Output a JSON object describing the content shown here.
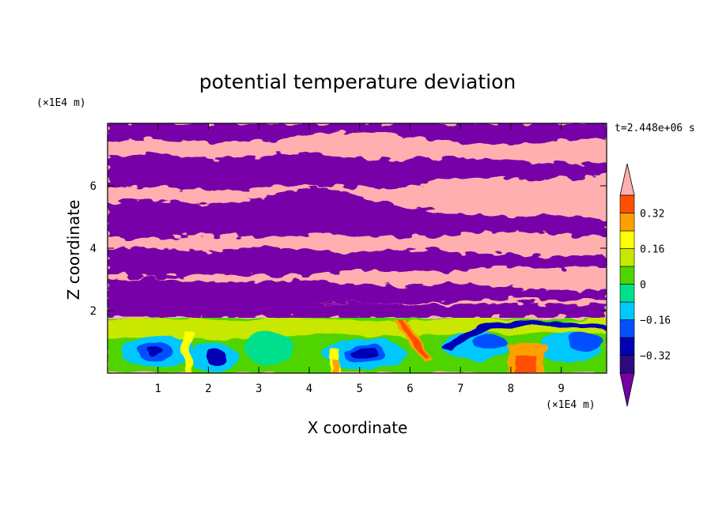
{
  "chart_data": {
    "type": "heatmap",
    "title": "potential temperature deviation",
    "xlabel": "X coordinate",
    "ylabel": "Z coordinate",
    "x_units": "(×1E4 m)",
    "y_units": "(×1E4 m)",
    "time_label": "t=2.448e+06 s",
    "xlim": [
      0,
      9.9
    ],
    "ylim": [
      0,
      8
    ],
    "x_ticks": [
      1,
      2,
      3,
      4,
      5,
      6,
      7,
      8,
      9
    ],
    "y_ticks": [
      2,
      4,
      6
    ],
    "colorbar": {
      "levels": [
        -0.4,
        -0.32,
        -0.24,
        -0.16,
        -0.08,
        0,
        0.08,
        0.16,
        0.24,
        0.32,
        0.4
      ],
      "labels": [
        "0.32",
        "0.16",
        "0",
        "−0.16",
        "−0.32"
      ],
      "label_values": [
        0.32,
        0.16,
        0,
        -0.16,
        -0.32
      ],
      "colors": [
        "#2e0a7e",
        "#0000b4",
        "#0050ff",
        "#00c8ff",
        "#00e08c",
        "#50d400",
        "#c8e800",
        "#ffff00",
        "#ffa000",
        "#ff5000",
        "#f01020"
      ],
      "over_color": "#ffafaf",
      "under_color": "#7700a8",
      "extend": "both"
    }
  }
}
